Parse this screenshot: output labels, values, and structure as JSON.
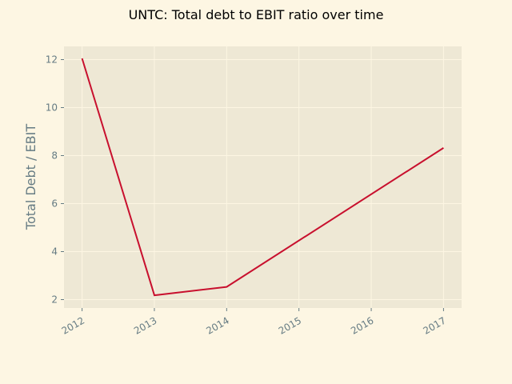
{
  "chart_data": {
    "type": "line",
    "title": "UNTC: Total debt to EBIT ratio over time",
    "xlabel": "",
    "ylabel": "Total Debt / EBIT",
    "x": [
      "2012",
      "2013",
      "2014",
      "2015",
      "2016",
      "2017"
    ],
    "x_ticks": [
      "2012",
      "2013",
      "2014",
      "2015",
      "2016",
      "2017"
    ],
    "series": [
      {
        "points": [
          {
            "x": 2012,
            "y": 12.05
          },
          {
            "x": 2013,
            "y": 2.18
          },
          {
            "x": 2014,
            "y": 2.53
          },
          {
            "x": 2017,
            "y": 8.32
          }
        ]
      }
    ],
    "y_ticks": [
      "2",
      "4",
      "6",
      "8",
      "10",
      "12"
    ],
    "ylim": [
      1.65,
      12.55
    ],
    "xlim": [
      2011.75,
      2017.25
    ],
    "grid": true,
    "legend": "none",
    "colors": {
      "figure_background": "#fdf6e3",
      "plot_background": "#eee8d5",
      "grid": "#fdf6e3",
      "line": "#c8102e",
      "tick_text": "#657b83"
    }
  }
}
